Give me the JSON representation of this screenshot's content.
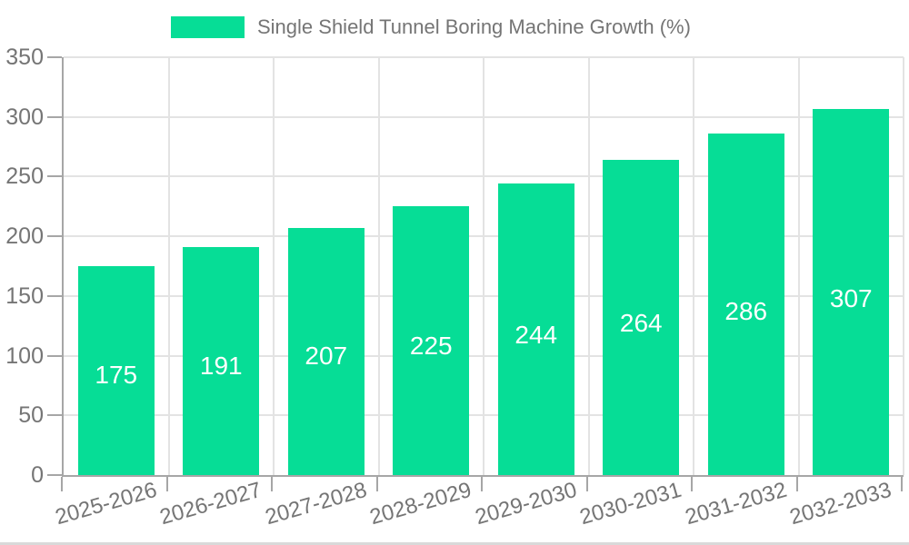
{
  "legend": {
    "label": "Single Shield Tunnel Boring Machine Growth (%)"
  },
  "colors": {
    "bar": "#06dd96",
    "bar_label_text": "#ffffff",
    "axis_line": "#a6a6a6",
    "grid_line": "#e3e3e3",
    "tick_label_text": "#757575",
    "legend_text": "#757575",
    "background": "#ffffff",
    "bottom_strip": "#d9d9d9"
  },
  "chart_data": {
    "type": "bar",
    "title": "Single Shield Tunnel Boring Machine Growth (%)",
    "categories": [
      "2025-2026",
      "2026-2027",
      "2027-2028",
      "2028-2029",
      "2029-2030",
      "2030-2031",
      "2031-2032",
      "2032-2033"
    ],
    "values": [
      175,
      191,
      207,
      225,
      244,
      264,
      286,
      307
    ],
    "series": [
      {
        "name": "Single Shield Tunnel Boring Machine Growth (%)",
        "values": [
          175,
          191,
          207,
          225,
          244,
          264,
          286,
          307
        ]
      }
    ],
    "xlabel": "",
    "ylabel": "",
    "ylim": [
      0,
      350
    ],
    "yticks": [
      0,
      50,
      100,
      150,
      200,
      250,
      300,
      350
    ],
    "grid": true,
    "legend_position": "top-center",
    "value_labels": "inside-middle",
    "x_tick_rotation_deg": -16
  }
}
